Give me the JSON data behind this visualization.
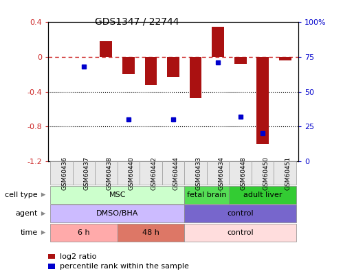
{
  "title": "GDS1347 / 22744",
  "samples": [
    "GSM60436",
    "GSM60437",
    "GSM60438",
    "GSM60440",
    "GSM60442",
    "GSM60444",
    "GSM60433",
    "GSM60434",
    "GSM60448",
    "GSM60450",
    "GSM60451"
  ],
  "log2_ratio": [
    0.0,
    0.0,
    0.18,
    -0.2,
    -0.32,
    -0.23,
    -0.47,
    0.35,
    -0.08,
    -1.0,
    -0.04
  ],
  "percentile_rank": [
    null,
    68,
    null,
    30,
    null,
    30,
    null,
    71,
    32,
    20,
    null
  ],
  "ylim_left": [
    -1.2,
    0.4
  ],
  "ylim_right": [
    0,
    100
  ],
  "right_ticks": [
    0,
    25,
    50,
    75,
    100
  ],
  "right_tick_labels": [
    "0",
    "25",
    "50",
    "75",
    "100%"
  ],
  "left_ticks": [
    -1.2,
    -0.8,
    -0.4,
    0.0,
    0.4
  ],
  "left_tick_labels": [
    "-1.2",
    "-0.8",
    "-0.4",
    "0",
    "0.4"
  ],
  "cell_type_groups": [
    {
      "label": "MSC",
      "start": 0,
      "end": 6,
      "color": "#ccffcc",
      "text_color": "black"
    },
    {
      "label": "fetal brain",
      "start": 6,
      "end": 8,
      "color": "#55dd55",
      "text_color": "black"
    },
    {
      "label": "adult liver",
      "start": 8,
      "end": 11,
      "color": "#33cc33",
      "text_color": "black"
    }
  ],
  "agent_groups": [
    {
      "label": "DMSO/BHA",
      "start": 0,
      "end": 6,
      "color": "#ccbbff",
      "text_color": "black"
    },
    {
      "label": "control",
      "start": 6,
      "end": 11,
      "color": "#7766cc",
      "text_color": "black"
    }
  ],
  "time_groups": [
    {
      "label": "6 h",
      "start": 0,
      "end": 3,
      "color": "#ffaaaa",
      "text_color": "black"
    },
    {
      "label": "48 h",
      "start": 3,
      "end": 6,
      "color": "#dd7766",
      "text_color": "black"
    },
    {
      "label": "control",
      "start": 6,
      "end": 11,
      "color": "#ffdddd",
      "text_color": "black"
    }
  ],
  "bar_color": "#aa1111",
  "dot_color": "#0000cc",
  "ref_line_color": "#cc2222",
  "background_color": "#ffffff"
}
